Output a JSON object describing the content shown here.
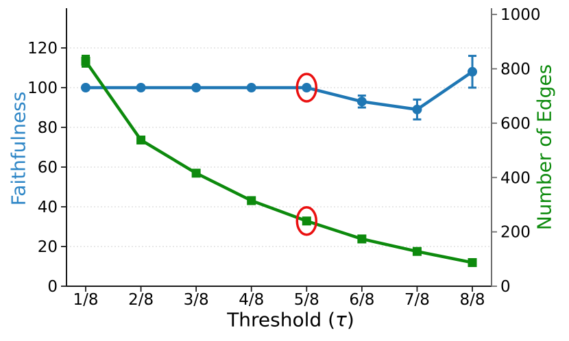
{
  "chart_data": {
    "type": "line",
    "title": "",
    "x_categories": [
      "1/8",
      "2/8",
      "3/8",
      "4/8",
      "5/8",
      "6/8",
      "7/8",
      "8/8"
    ],
    "xlabel": "Threshold (τ)",
    "xlabel_parts": {
      "prefix": "Threshold (",
      "tau": "τ",
      "suffix": ")"
    },
    "left_axis": {
      "label": "Faithfulness",
      "color": "#2e86c6",
      "tick_color": "#000000",
      "ticks": [
        0,
        20,
        40,
        60,
        80,
        100,
        120
      ],
      "range": [
        0,
        140
      ]
    },
    "right_axis": {
      "label": "Number of Edges",
      "color": "#0e8b0e",
      "tick_color": "#000000",
      "ticks": [
        0,
        200,
        400,
        600,
        800,
        1000
      ],
      "range": [
        0,
        1023
      ]
    },
    "series": [
      {
        "name": "Faithfulness",
        "axis": "left",
        "color": "#1f77b4",
        "marker": "circle",
        "values": [
          100,
          100,
          100,
          100,
          100,
          93,
          89,
          108
        ],
        "errors": [
          0,
          0,
          0,
          0,
          0,
          3,
          5,
          8
        ]
      },
      {
        "name": "Number of Edges",
        "axis": "right",
        "color": "#0d8a0d",
        "marker": "square",
        "values": [
          828,
          538,
          416,
          315,
          240,
          174,
          128,
          87
        ],
        "errors": [
          20,
          0,
          0,
          0,
          0,
          0,
          0,
          0
        ]
      }
    ],
    "annotations": [
      {
        "type": "highlight-ellipse",
        "series_index": 0,
        "x_index": 4,
        "color": "#ea1010"
      },
      {
        "type": "highlight-ellipse",
        "series_index": 1,
        "x_index": 4,
        "color": "#ea1010"
      }
    ],
    "grid": {
      "show": true,
      "color": "#d9d9d9",
      "dash": "2,3"
    },
    "spines": {
      "left": "#1a1a1a",
      "bottom": "#1a1a1a",
      "right": "#6e6e6e"
    }
  }
}
